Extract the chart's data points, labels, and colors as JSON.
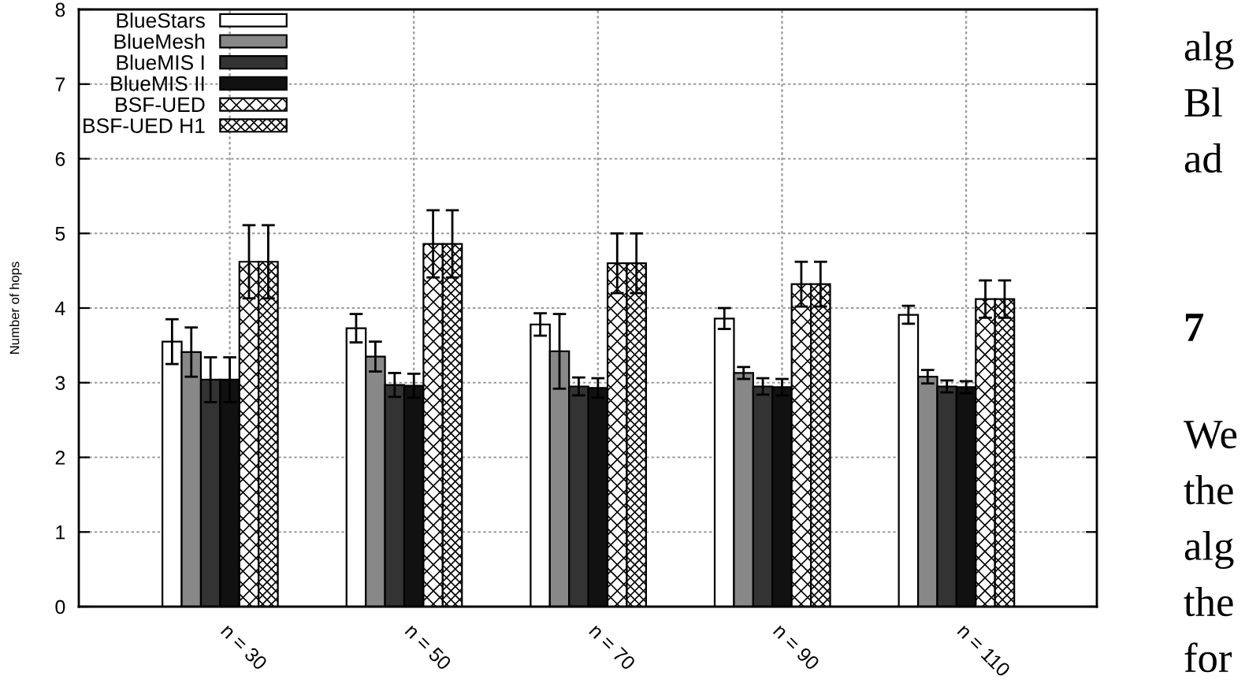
{
  "chart_data": {
    "type": "bar",
    "ylabel": "Number of hops",
    "categories": [
      "n = 30",
      "n = 50",
      "n = 70",
      "n = 90",
      "n = 110"
    ],
    "series": [
      {
        "name": "BlueStars",
        "color": "#ffffff",
        "values": [
          3.55,
          3.73,
          3.78,
          3.86,
          3.91
        ],
        "errors": [
          0.3,
          0.19,
          0.15,
          0.14,
          0.12
        ]
      },
      {
        "name": "BlueMesh",
        "color": "#888888",
        "values": [
          3.41,
          3.35,
          3.42,
          3.13,
          3.08
        ],
        "errors": [
          0.33,
          0.2,
          0.5,
          0.08,
          0.09
        ]
      },
      {
        "name": "BlueMIS I",
        "color": "#333333",
        "values": [
          3.04,
          2.97,
          2.95,
          2.95,
          2.95
        ],
        "errors": [
          0.3,
          0.16,
          0.12,
          0.11,
          0.08
        ]
      },
      {
        "name": "BlueMIS II",
        "color": "#111111",
        "values": [
          3.04,
          2.96,
          2.93,
          2.94,
          2.94
        ],
        "errors": [
          0.3,
          0.16,
          0.13,
          0.11,
          0.08
        ]
      },
      {
        "name": "BSF-UED",
        "color": "#000000",
        "values": [
          4.62,
          4.86,
          4.6,
          4.32,
          4.12
        ],
        "errors": [
          0.49,
          0.45,
          0.4,
          0.3,
          0.25
        ]
      },
      {
        "name": "BSF-UED H1",
        "color": "#000000",
        "values": [
          4.62,
          4.86,
          4.6,
          4.32,
          4.12
        ],
        "errors": [
          0.49,
          0.45,
          0.4,
          0.3,
          0.25
        ]
      }
    ],
    "ylim": [
      0,
      8
    ],
    "yticks": [
      0,
      1,
      2,
      3,
      4,
      5,
      6,
      7,
      8
    ],
    "grid": true,
    "legend": "top left",
    "annotations": [
      "alg\nBl\nad",
      "7",
      "We\nthe\nalg\nthe\nfor"
    ]
  }
}
